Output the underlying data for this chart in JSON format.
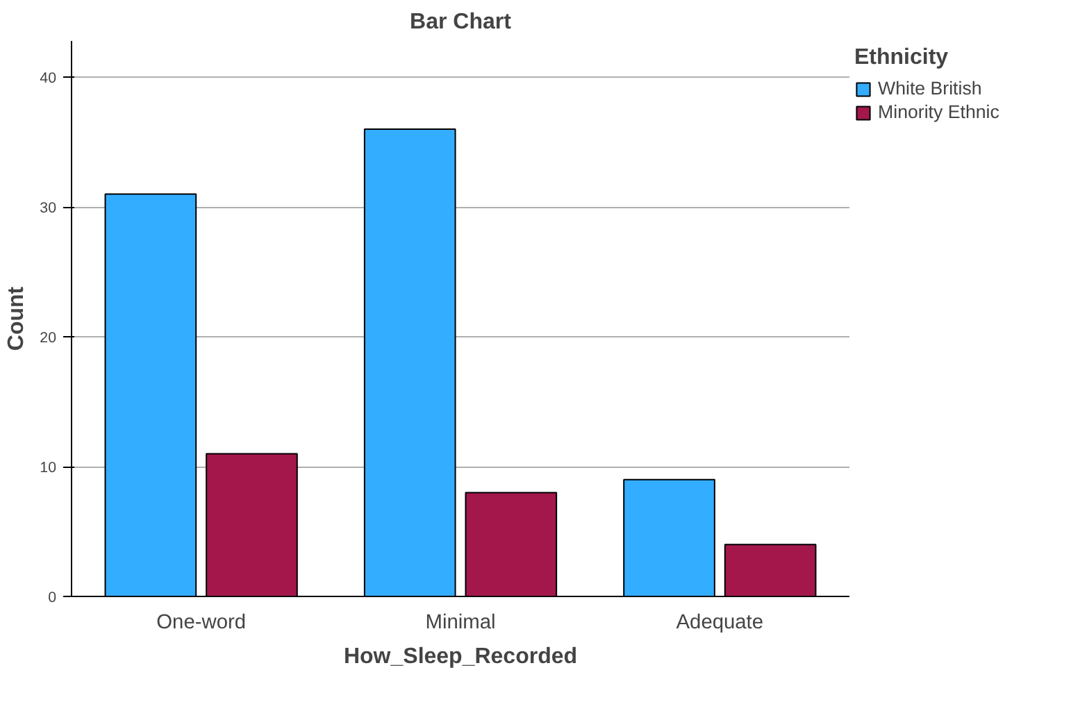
{
  "chart_data": {
    "type": "bar",
    "title": "Bar Chart",
    "xlabel": "How_Sleep_Recorded",
    "ylabel": "Count",
    "legend_title": "Ethnicity",
    "categories": [
      "One-word",
      "Minimal",
      "Adequate"
    ],
    "series": [
      {
        "name": "White British",
        "color": "#33adff",
        "values": [
          31,
          36,
          9
        ]
      },
      {
        "name": "Minority Ethnic",
        "color": "#a3174b",
        "values": [
          11,
          8,
          4
        ]
      }
    ],
    "ylim": [
      0,
      42.8
    ],
    "yticks": [
      0,
      10,
      20,
      30,
      40
    ],
    "grid": "y",
    "legend": "top right"
  }
}
